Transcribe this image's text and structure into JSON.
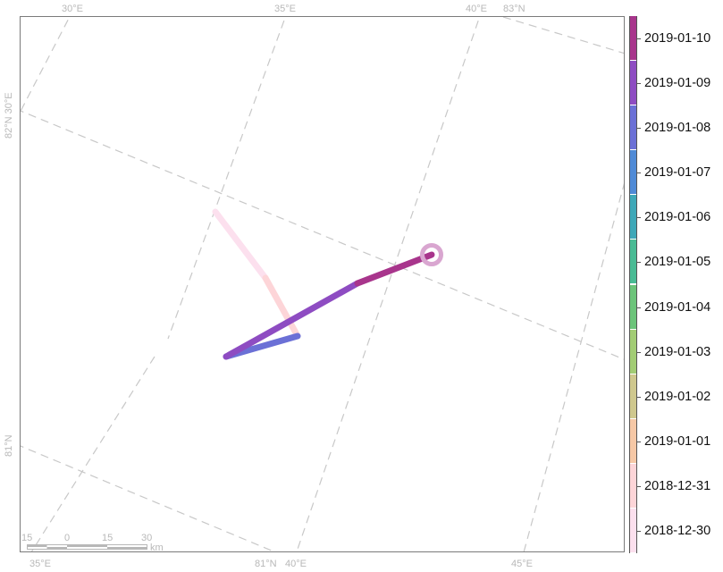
{
  "map": {
    "lat_labels": [
      "83°N",
      "82°N 30°E",
      "81°N",
      "81°N"
    ],
    "lon_labels_top": [
      "30°E",
      "35°E",
      "40°E"
    ],
    "lon_labels_bottom": [
      "35°E",
      "40°E",
      "45°E"
    ],
    "grid_color": "#c8c8c8",
    "frame_color": "#7a7a7a"
  },
  "track": {
    "segments": [
      {
        "date": "2018-12-30",
        "color": "#fce0ee"
      },
      {
        "date": "2018-12-31",
        "color": "#fdd5d8"
      },
      {
        "date": "2019-01-08",
        "color": "#6b70d6"
      },
      {
        "date": "2019-01-09",
        "color": "#8e4cc2"
      },
      {
        "date": "2019-01-10",
        "color": "#a8358c"
      }
    ],
    "end_marker_color": "#d9a6d0"
  },
  "colorbar": {
    "labels": [
      "2019-01-10",
      "2019-01-09",
      "2019-01-08",
      "2019-01-07",
      "2019-01-06",
      "2019-01-05",
      "2019-01-04",
      "2019-01-03",
      "2019-01-02",
      "2019-01-01",
      "2018-12-31",
      "2018-12-30"
    ],
    "colors": [
      "#a8358c",
      "#8e4cc2",
      "#6b70d6",
      "#4f8ad6",
      "#3ea8b8",
      "#49bb94",
      "#6cc47a",
      "#a2cc74",
      "#cfc88e",
      "#f6c8a6",
      "#fdd5d8",
      "#fce0ee"
    ]
  },
  "scalebar": {
    "numbers": [
      "15",
      "0",
      "15",
      "30"
    ],
    "unit": "km"
  }
}
